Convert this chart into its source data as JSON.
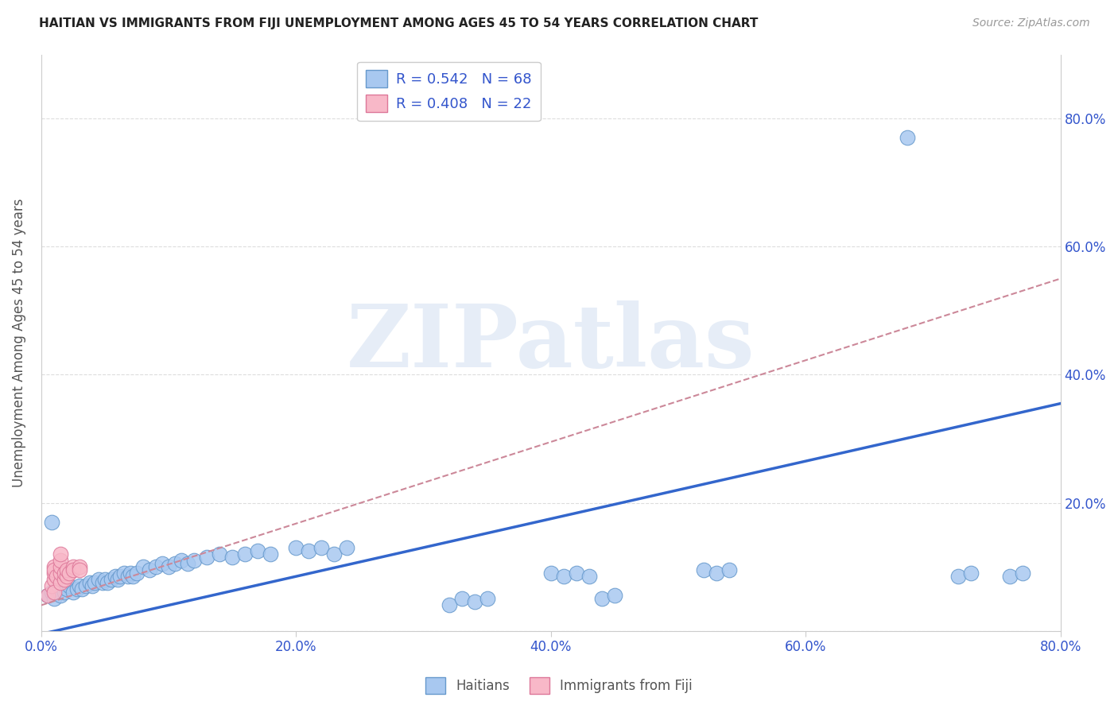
{
  "title": "HAITIAN VS IMMIGRANTS FROM FIJI UNEMPLOYMENT AMONG AGES 45 TO 54 YEARS CORRELATION CHART",
  "source": "Source: ZipAtlas.com",
  "ylabel": "Unemployment Among Ages 45 to 54 years",
  "xlim": [
    0.0,
    0.8
  ],
  "ylim": [
    0.0,
    0.9
  ],
  "ytick_labels": [
    "",
    "20.0%",
    "40.0%",
    "60.0%",
    "80.0%"
  ],
  "ytick_vals": [
    0.0,
    0.2,
    0.4,
    0.6,
    0.8
  ],
  "xtick_labels": [
    "0.0%",
    "20.0%",
    "40.0%",
    "60.0%",
    "80.0%"
  ],
  "xtick_vals": [
    0.0,
    0.2,
    0.4,
    0.6,
    0.8
  ],
  "haitian_color": "#a8c8f0",
  "haitian_edge_color": "#6699cc",
  "fiji_color": "#f8b8c8",
  "fiji_edge_color": "#dd7799",
  "haitian_R": 0.542,
  "haitian_N": 68,
  "fiji_R": 0.408,
  "fiji_N": 22,
  "trend_haitian_color": "#3366cc",
  "trend_fiji_color": "#cc8899",
  "trend_haitian_x0": 0.0,
  "trend_haitian_y0": -0.005,
  "trend_haitian_x1": 0.8,
  "trend_haitian_y1": 0.355,
  "trend_fiji_x0": 0.0,
  "trend_fiji_y0": 0.04,
  "trend_fiji_x1": 0.8,
  "trend_fiji_y1": 0.55,
  "watermark_text": "ZIPatlas",
  "background_color": "#ffffff",
  "grid_color": "#dddddd",
  "title_color": "#222222",
  "axis_label_color": "#555555",
  "legend_text_color": "#3355cc",
  "tick_label_color": "#3355cc",
  "haitian_points": [
    [
      0.005,
      0.055
    ],
    [
      0.008,
      0.06
    ],
    [
      0.01,
      0.05
    ],
    [
      0.012,
      0.065
    ],
    [
      0.015,
      0.055
    ],
    [
      0.018,
      0.06
    ],
    [
      0.02,
      0.065
    ],
    [
      0.022,
      0.07
    ],
    [
      0.025,
      0.06
    ],
    [
      0.028,
      0.065
    ],
    [
      0.03,
      0.07
    ],
    [
      0.032,
      0.065
    ],
    [
      0.035,
      0.07
    ],
    [
      0.038,
      0.075
    ],
    [
      0.04,
      0.07
    ],
    [
      0.042,
      0.075
    ],
    [
      0.045,
      0.08
    ],
    [
      0.048,
      0.075
    ],
    [
      0.05,
      0.08
    ],
    [
      0.052,
      0.075
    ],
    [
      0.055,
      0.08
    ],
    [
      0.058,
      0.085
    ],
    [
      0.06,
      0.08
    ],
    [
      0.062,
      0.085
    ],
    [
      0.065,
      0.09
    ],
    [
      0.068,
      0.085
    ],
    [
      0.07,
      0.09
    ],
    [
      0.072,
      0.085
    ],
    [
      0.075,
      0.09
    ],
    [
      0.008,
      0.17
    ],
    [
      0.08,
      0.1
    ],
    [
      0.085,
      0.095
    ],
    [
      0.09,
      0.1
    ],
    [
      0.095,
      0.105
    ],
    [
      0.1,
      0.1
    ],
    [
      0.105,
      0.105
    ],
    [
      0.11,
      0.11
    ],
    [
      0.115,
      0.105
    ],
    [
      0.12,
      0.11
    ],
    [
      0.13,
      0.115
    ],
    [
      0.14,
      0.12
    ],
    [
      0.15,
      0.115
    ],
    [
      0.16,
      0.12
    ],
    [
      0.17,
      0.125
    ],
    [
      0.18,
      0.12
    ],
    [
      0.2,
      0.13
    ],
    [
      0.21,
      0.125
    ],
    [
      0.22,
      0.13
    ],
    [
      0.23,
      0.12
    ],
    [
      0.24,
      0.13
    ],
    [
      0.32,
      0.04
    ],
    [
      0.33,
      0.05
    ],
    [
      0.34,
      0.045
    ],
    [
      0.35,
      0.05
    ],
    [
      0.4,
      0.09
    ],
    [
      0.41,
      0.085
    ],
    [
      0.42,
      0.09
    ],
    [
      0.43,
      0.085
    ],
    [
      0.44,
      0.05
    ],
    [
      0.45,
      0.055
    ],
    [
      0.52,
      0.095
    ],
    [
      0.53,
      0.09
    ],
    [
      0.54,
      0.095
    ],
    [
      0.68,
      0.77
    ],
    [
      0.72,
      0.085
    ],
    [
      0.73,
      0.09
    ],
    [
      0.76,
      0.085
    ],
    [
      0.77,
      0.09
    ]
  ],
  "fiji_points": [
    [
      0.005,
      0.055
    ],
    [
      0.008,
      0.07
    ],
    [
      0.01,
      0.08
    ],
    [
      0.01,
      0.09
    ],
    [
      0.01,
      0.1
    ],
    [
      0.01,
      0.06
    ],
    [
      0.01,
      0.095
    ],
    [
      0.012,
      0.085
    ],
    [
      0.015,
      0.075
    ],
    [
      0.015,
      0.09
    ],
    [
      0.015,
      0.1
    ],
    [
      0.015,
      0.11
    ],
    [
      0.015,
      0.12
    ],
    [
      0.018,
      0.08
    ],
    [
      0.018,
      0.09
    ],
    [
      0.02,
      0.085
    ],
    [
      0.02,
      0.095
    ],
    [
      0.022,
      0.09
    ],
    [
      0.025,
      0.1
    ],
    [
      0.025,
      0.095
    ],
    [
      0.03,
      0.1
    ],
    [
      0.03,
      0.095
    ]
  ]
}
